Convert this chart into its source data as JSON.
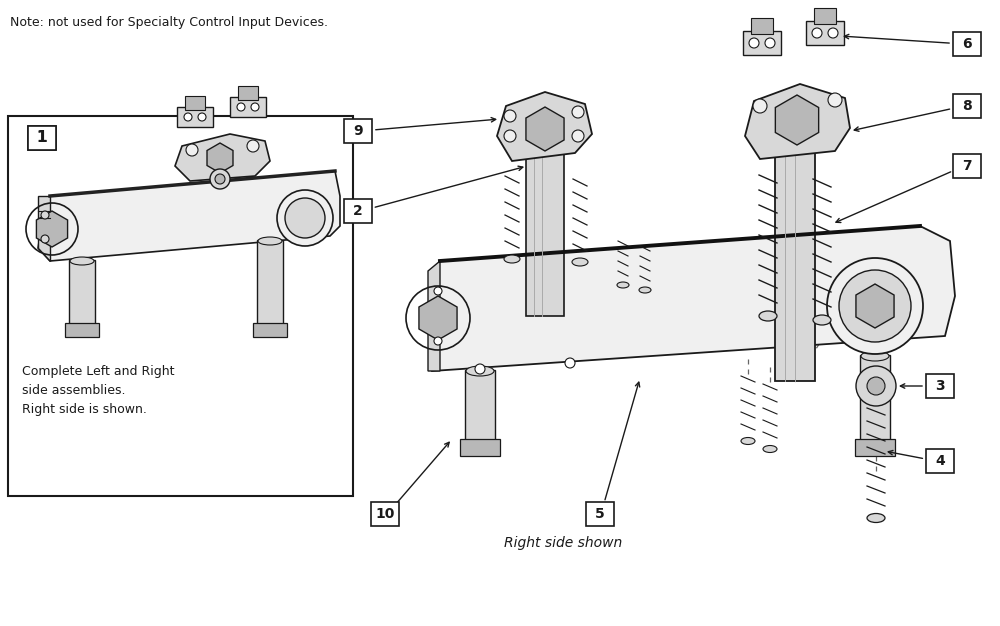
{
  "bg": "#ffffff",
  "lc": "#1a1a1a",
  "note": "Note: not used for Specialty Control Input Devices.",
  "subtitle": "Right side shown",
  "box1_text": "Complete Left and Right\nside assemblies.\nRight side is shown.",
  "fill_light": "#f0f0f0",
  "fill_mid": "#d8d8d8",
  "fill_dark": "#b8b8b8",
  "fill_white": "#ffffff"
}
